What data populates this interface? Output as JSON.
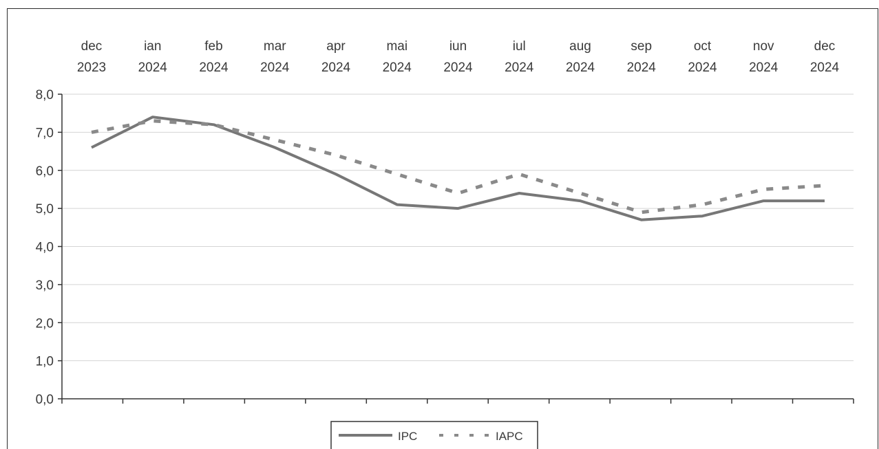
{
  "chart_data": {
    "type": "line",
    "categories": [
      [
        "dec",
        "2023"
      ],
      [
        "ian",
        "2024"
      ],
      [
        "feb",
        "2024"
      ],
      [
        "mar",
        "2024"
      ],
      [
        "apr",
        "2024"
      ],
      [
        "mai",
        "2024"
      ],
      [
        "iun",
        "2024"
      ],
      [
        "iul",
        "2024"
      ],
      [
        "aug",
        "2024"
      ],
      [
        "sep",
        "2024"
      ],
      [
        "oct",
        "2024"
      ],
      [
        "nov",
        "2024"
      ],
      [
        "dec",
        "2024"
      ]
    ],
    "y_ticks": [
      "0,0",
      "1,0",
      "2,0",
      "3,0",
      "4,0",
      "5,0",
      "6,0",
      "7,0",
      "8,0"
    ],
    "ylim": [
      0,
      8
    ],
    "grid": true,
    "legend_position": "bottom-center",
    "series": [
      {
        "name": "IPC",
        "style": "solid",
        "color": "#777777",
        "values": [
          6.6,
          7.4,
          7.2,
          6.6,
          5.9,
          5.1,
          5.0,
          5.4,
          5.2,
          4.7,
          4.8,
          5.2,
          5.2
        ]
      },
      {
        "name": "IAPC",
        "style": "dashed",
        "color": "#8a8a8a",
        "values": [
          7.0,
          7.3,
          7.2,
          6.8,
          6.4,
          5.9,
          5.4,
          5.9,
          5.4,
          4.9,
          5.1,
          5.5,
          5.6
        ]
      }
    ]
  }
}
